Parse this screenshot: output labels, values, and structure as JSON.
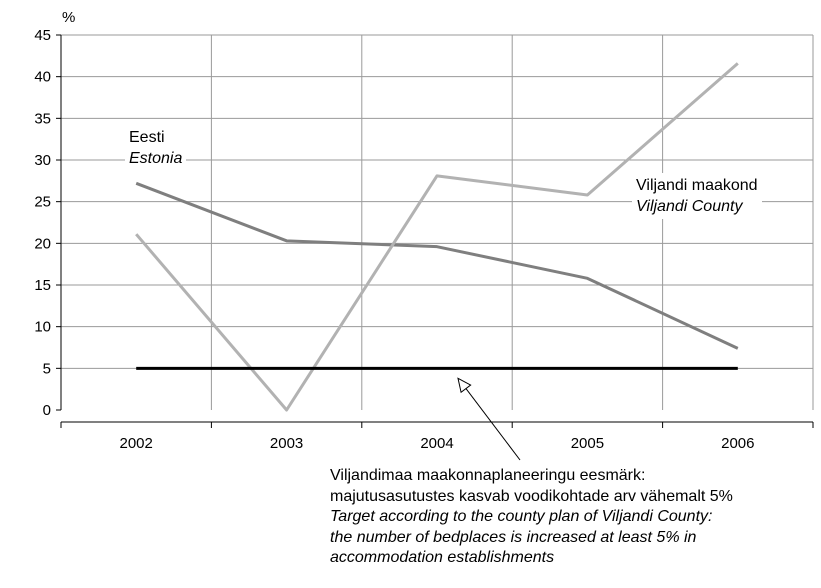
{
  "chart_data": {
    "type": "line",
    "title": "",
    "xlabel": "",
    "ylabel": "%",
    "ylim": [
      0,
      45
    ],
    "yticks": [
      0,
      5,
      10,
      15,
      20,
      25,
      30,
      35,
      40,
      45
    ],
    "categories": [
      "2002",
      "2003",
      "2004",
      "2005",
      "2006"
    ],
    "grid": true,
    "series": [
      {
        "name": "Eesti / Estonia",
        "label_et": "Eesti",
        "label_en": "Estonia",
        "color": "#7f7f7f",
        "values": [
          27.2,
          20.3,
          19.6,
          15.8,
          7.4
        ]
      },
      {
        "name": "Viljandi maakond / Viljandi County",
        "label_et": "Viljandi maakond",
        "label_en": "Viljandi County",
        "color": "#b2b2b2",
        "values": [
          21.1,
          0.0,
          28.1,
          25.8,
          41.6
        ]
      },
      {
        "name": "Target",
        "color": "#000000",
        "values": [
          5,
          5,
          5,
          5,
          5
        ]
      }
    ],
    "annotation": {
      "lines": [
        "Viljandimaa maakonnaplaneeringu eesmärk:",
        "majutusasutustes kasvab voodikohtade arv  vähemalt 5%",
        "Target according to the county plan of Viljandi County:",
        "the number of bedplaces is increased at least 5% in",
        "accommodation establishments"
      ]
    }
  }
}
